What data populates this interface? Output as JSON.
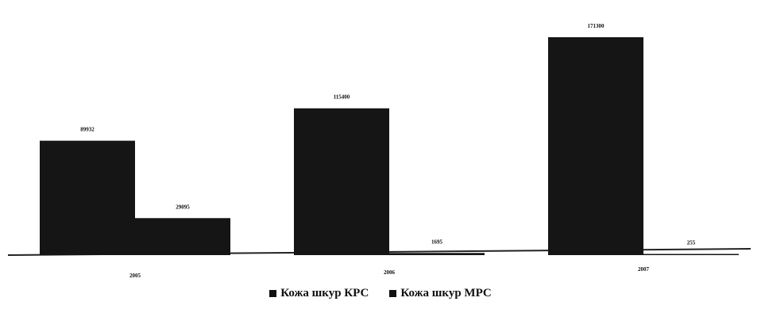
{
  "chart_data": {
    "type": "bar",
    "title": "",
    "xlabel": "",
    "ylabel": "",
    "categories": [
      "2005",
      "2006",
      "2007"
    ],
    "series": [
      {
        "name": "Кожа шкур КРС",
        "values": [
          89932,
          115400,
          171300
        ],
        "labels": [
          "89932",
          "115400",
          "171300"
        ]
      },
      {
        "name": "Кожа шкур МРС",
        "values": [
          29095,
          1695,
          255
        ],
        "labels": [
          "29095",
          "1695",
          "255"
        ]
      }
    ],
    "ylim": [
      0,
      180000
    ],
    "grid": false,
    "legend": "bottom",
    "colors": {
      "series": "#151515",
      "baseline": "#222222",
      "text": "#111111"
    }
  }
}
